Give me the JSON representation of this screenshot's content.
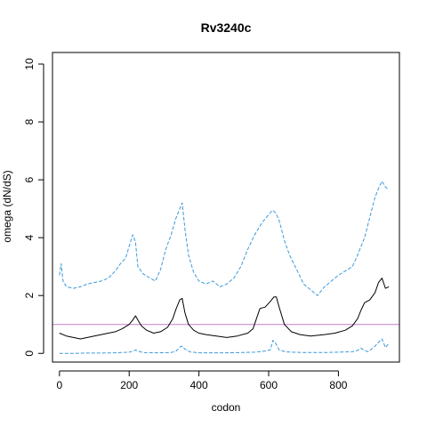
{
  "chart_data": {
    "type": "line",
    "title": "Rv3240c",
    "xlabel": "codon",
    "ylabel": "omega (dN/dS)",
    "xlim": [
      -20,
      975
    ],
    "ylim": [
      -0.3,
      10.4
    ],
    "x_ticks": [
      0,
      200,
      400,
      600,
      800
    ],
    "y_ticks": [
      0,
      2,
      4,
      6,
      8,
      10
    ],
    "grid": false,
    "legend": "none",
    "reference_line": {
      "y": 1,
      "color": "#c77fc7"
    },
    "series": [
      {
        "style": "solid",
        "color": "#000000",
        "x": [
          0,
          20,
          40,
          60,
          80,
          100,
          120,
          140,
          160,
          180,
          200,
          210,
          218,
          225,
          235,
          250,
          270,
          290,
          310,
          325,
          335,
          345,
          352,
          360,
          370,
          385,
          400,
          420,
          450,
          480,
          510,
          540,
          555,
          565,
          575,
          590,
          605,
          615,
          622,
          630,
          645,
          665,
          690,
          720,
          760,
          790,
          820,
          840,
          855,
          865,
          875,
          890,
          905,
          915,
          925,
          935,
          945
        ],
        "y": [
          0.7,
          0.6,
          0.55,
          0.5,
          0.55,
          0.6,
          0.65,
          0.7,
          0.75,
          0.85,
          1.0,
          1.15,
          1.3,
          1.15,
          0.95,
          0.8,
          0.7,
          0.75,
          0.9,
          1.2,
          1.55,
          1.85,
          1.9,
          1.4,
          1.0,
          0.8,
          0.7,
          0.65,
          0.6,
          0.55,
          0.6,
          0.7,
          0.85,
          1.2,
          1.55,
          1.6,
          1.8,
          1.95,
          1.95,
          1.6,
          1.0,
          0.75,
          0.65,
          0.6,
          0.65,
          0.7,
          0.8,
          0.95,
          1.2,
          1.5,
          1.75,
          1.85,
          2.1,
          2.45,
          2.6,
          2.25,
          2.3
        ]
      },
      {
        "style": "dashed",
        "color": "#3a9ad9",
        "x": [
          0,
          5,
          10,
          20,
          40,
          60,
          80,
          100,
          120,
          140,
          160,
          175,
          190,
          200,
          210,
          218,
          225,
          240,
          260,
          275,
          290,
          305,
          320,
          335,
          345,
          352,
          360,
          370,
          385,
          400,
          420,
          440,
          460,
          480,
          500,
          520,
          540,
          560,
          580,
          600,
          612,
          620,
          630,
          645,
          660,
          680,
          700,
          720,
          740,
          760,
          780,
          800,
          820,
          840,
          855,
          865,
          875,
          890,
          905,
          915,
          925,
          935,
          945
        ],
        "y": [
          2.7,
          3.1,
          2.5,
          2.3,
          2.25,
          2.3,
          2.4,
          2.45,
          2.5,
          2.6,
          2.85,
          3.1,
          3.3,
          3.7,
          4.1,
          3.85,
          3.0,
          2.75,
          2.6,
          2.5,
          2.9,
          3.6,
          4.1,
          4.7,
          5.0,
          5.2,
          4.3,
          3.4,
          2.8,
          2.5,
          2.4,
          2.5,
          2.3,
          2.4,
          2.6,
          3.0,
          3.6,
          4.1,
          4.5,
          4.8,
          4.95,
          4.85,
          4.6,
          3.9,
          3.4,
          2.9,
          2.4,
          2.2,
          2.0,
          2.3,
          2.5,
          2.7,
          2.85,
          3.0,
          3.4,
          3.7,
          4.0,
          4.7,
          5.4,
          5.7,
          5.95,
          5.75,
          5.65
        ]
      },
      {
        "style": "dashed",
        "color": "#3a9ad9",
        "x": [
          0,
          40,
          80,
          120,
          160,
          200,
          212,
          218,
          225,
          240,
          280,
          320,
          335,
          345,
          352,
          360,
          375,
          400,
          440,
          480,
          520,
          560,
          590,
          605,
          612,
          620,
          630,
          650,
          700,
          760,
          800,
          840,
          855,
          865,
          875,
          885,
          895,
          905,
          915,
          925,
          935,
          945
        ],
        "y": [
          0.0,
          0.0,
          0.01,
          0.01,
          0.02,
          0.04,
          0.08,
          0.12,
          0.08,
          0.03,
          0.02,
          0.03,
          0.08,
          0.22,
          0.25,
          0.15,
          0.05,
          0.02,
          0.02,
          0.02,
          0.03,
          0.04,
          0.08,
          0.12,
          0.45,
          0.35,
          0.12,
          0.05,
          0.03,
          0.03,
          0.04,
          0.06,
          0.1,
          0.18,
          0.1,
          0.06,
          0.15,
          0.25,
          0.38,
          0.5,
          0.2,
          0.35
        ]
      }
    ]
  }
}
